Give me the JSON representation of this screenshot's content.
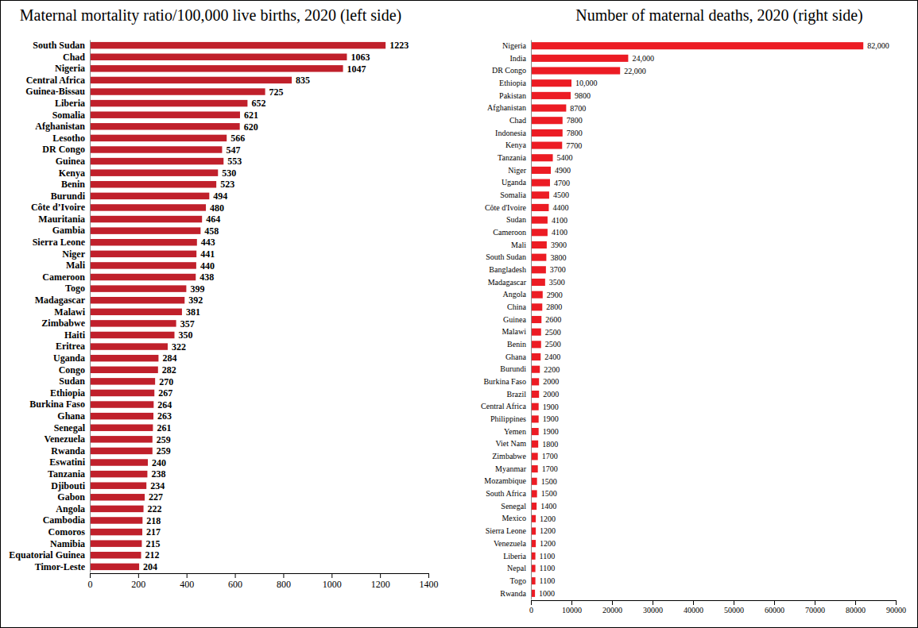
{
  "chart_data": [
    {
      "type": "bar",
      "orientation": "horizontal",
      "title": "Maternal mortality ratio/100,000 live births, 2020 (left side)",
      "categories": [
        "South Sudan",
        "Chad",
        "Nigeria",
        "Central Africa",
        "Guinea-Bissau",
        "Liberia",
        "Somalia",
        "Afghanistan",
        "Lesotho",
        "DR Congo",
        "Guinea",
        "Kenya",
        "Benin",
        "Burundi",
        "Côte d’Ivoire",
        "Mauritania",
        "Gambia",
        "Sierra Leone",
        "Niger",
        "Mali",
        "Cameroon",
        "Togo",
        "Madagascar",
        "Malawi",
        "Zimbabwe",
        "Haiti",
        "Eritrea",
        "Uganda",
        "Congo",
        "Sudan",
        "Ethiopia",
        "Burkina Faso",
        "Ghana",
        "Senegal",
        "Venezuela",
        "Rwanda",
        "Eswatini",
        "Tanzania",
        "Djibouti",
        "Gabon",
        "Angola",
        "Cambodia",
        "Comoros",
        "Namibia",
        "Equatorial Guinea",
        "Timor-Leste"
      ],
      "values": [
        1223,
        1063,
        1047,
        835,
        725,
        652,
        621,
        620,
        566,
        547,
        553,
        530,
        523,
        494,
        480,
        464,
        458,
        443,
        441,
        440,
        438,
        399,
        392,
        381,
        357,
        350,
        322,
        284,
        282,
        270,
        267,
        264,
        263,
        261,
        259,
        259,
        240,
        238,
        234,
        227,
        222,
        218,
        217,
        215,
        212,
        204
      ],
      "color": "#c0202b",
      "xlim": [
        0,
        1400
      ],
      "xticks": [
        0,
        200,
        400,
        600,
        800,
        1000,
        1200,
        1400
      ],
      "data_labels": true,
      "grid": false
    },
    {
      "type": "bar",
      "orientation": "horizontal",
      "title": "Number of maternal deaths, 2020 (right side)",
      "categories": [
        "Nigeria",
        "India",
        "DR Congo",
        "Ethiopia",
        "Pakistan",
        "Afghanistan",
        "Chad",
        "Indonesia",
        "Kenya",
        "Tanzania",
        "Niger",
        "Uganda",
        "Somalia",
        "Côte d'Ivoire",
        "Sudan",
        "Cameroon",
        "Mali",
        "South Sudan",
        "Bangladesh",
        "Madagascar",
        "Angola",
        "China",
        "Guinea",
        "Malawi",
        "Benin",
        "Ghana",
        "Burundi",
        "Burkina Faso",
        "Brazil",
        "Central Africa",
        "Philippines",
        "Yemen",
        "Viet Nam",
        "Zimbabwe",
        "Myanmar",
        "Mozambique",
        "South Africa",
        "Senegal",
        "Mexico",
        "Sierra Leone",
        "Venezuela",
        "Liberia",
        "Nepal",
        "Togo",
        "Rwanda"
      ],
      "values": [
        82000,
        24000,
        22000,
        10000,
        9800,
        8700,
        7800,
        7800,
        7700,
        5400,
        4900,
        4700,
        4500,
        4400,
        4100,
        4100,
        3900,
        3800,
        3700,
        3500,
        2900,
        2800,
        2600,
        2500,
        2500,
        2400,
        2200,
        2000,
        2000,
        1900,
        1900,
        1900,
        1800,
        1700,
        1700,
        1500,
        1500,
        1400,
        1200,
        1200,
        1200,
        1100,
        1100,
        1100,
        1000
      ],
      "value_labels": [
        "82,000",
        "24,000",
        "22,000",
        "10,000",
        "9800",
        "8700",
        "7800",
        "7800",
        "7700",
        "5400",
        "4900",
        "4700",
        "4500",
        "4400",
        "4100",
        "4100",
        "3900",
        "3800",
        "3700",
        "3500",
        "2900",
        "2800",
        "2600",
        "2500",
        "2500",
        "2400",
        "2200",
        "2000",
        "2000",
        "1900",
        "1900",
        "1900",
        "1800",
        "1700",
        "1700",
        "1500",
        "1500",
        "1400",
        "1200",
        "1200",
        "1200",
        "1100",
        "1100",
        "1100",
        "1000"
      ],
      "color": "#ec1c24",
      "xlim": [
        0,
        90000
      ],
      "xticks": [
        0,
        10000,
        20000,
        30000,
        40000,
        50000,
        60000,
        70000,
        80000,
        90000
      ],
      "data_labels": true,
      "grid": false
    }
  ]
}
